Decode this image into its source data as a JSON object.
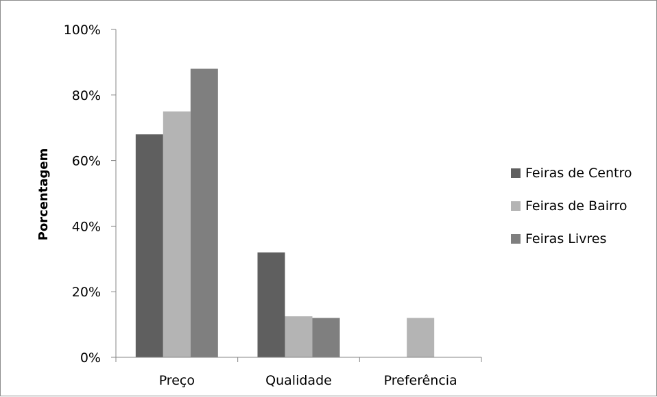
{
  "chart_data": {
    "type": "bar",
    "title": "",
    "xlabel": "",
    "ylabel": "Porcentagem",
    "categories": [
      "Preço",
      "Qualidade",
      "Preferência"
    ],
    "ylim": [
      0,
      100
    ],
    "yticks": [
      "0%",
      "20%",
      "40%",
      "60%",
      "80%",
      "100%"
    ],
    "ytick_values": [
      0,
      20,
      40,
      60,
      80,
      100
    ],
    "grid": false,
    "legend_position": "right",
    "series": [
      {
        "name": "Feiras de Centro",
        "values": [
          68,
          32,
          0
        ],
        "color": "#5f5f5f"
      },
      {
        "name": "Feiras de Bairro",
        "values": [
          75,
          12.5,
          12
        ],
        "color": "#b4b4b4"
      },
      {
        "name": "Feiras Livres",
        "values": [
          88,
          12,
          0
        ],
        "color": "#7f7f7f"
      }
    ]
  }
}
